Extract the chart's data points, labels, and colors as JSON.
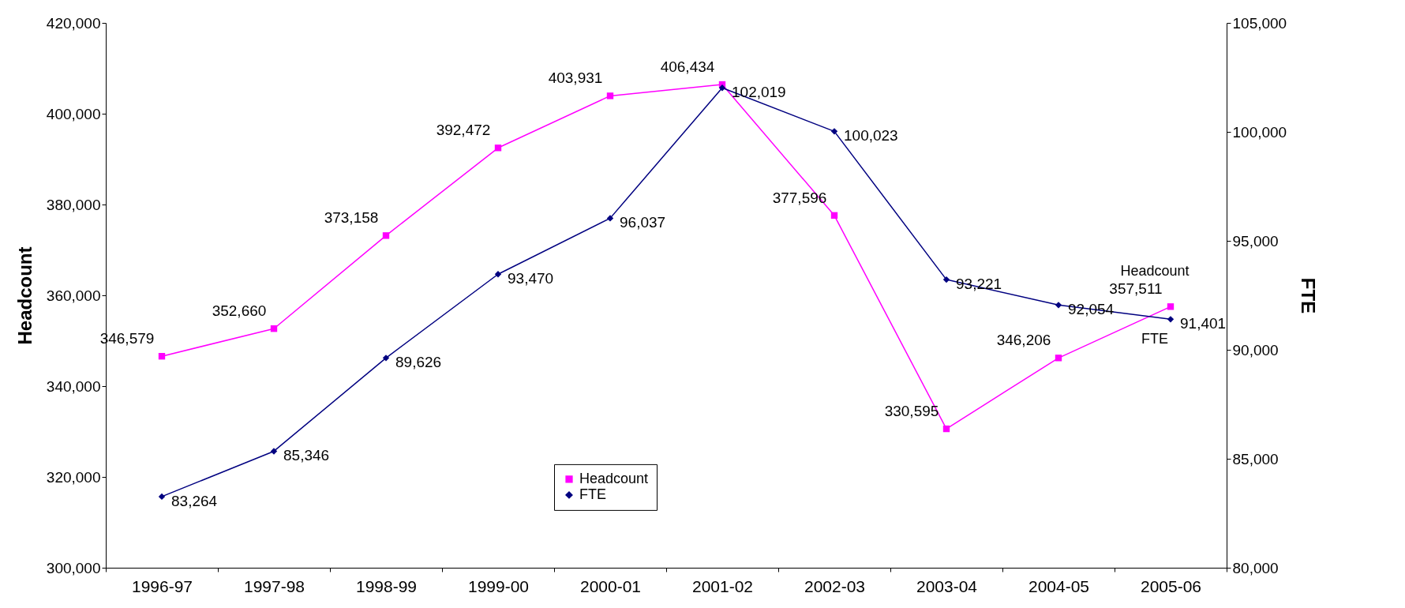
{
  "chart_data": {
    "type": "line",
    "ylabel": "Headcount",
    "y2label": "FTE",
    "categories": [
      "1996-97",
      "1997-98",
      "1998-99",
      "1999-00",
      "2000-01",
      "2001-02",
      "2002-03",
      "2003-04",
      "2004-05",
      "2005-06"
    ],
    "series": [
      {
        "name": "Headcount",
        "color": "#ff00ff",
        "marker": "square",
        "values": [
          346579,
          352660,
          373158,
          392472,
          403931,
          406434,
          377596,
          330595,
          346206,
          357511
        ],
        "value_labels": [
          "346,579",
          "352,660",
          "373,158",
          "392,472",
          "403,931",
          "406,434",
          "377,596",
          "330,595",
          "346,206",
          "357,511"
        ]
      },
      {
        "name": "FTE",
        "color": "#000080",
        "marker": "diamond",
        "axis": "y2",
        "values": [
          83264,
          85346,
          89626,
          93470,
          96037,
          102019,
          100023,
          93221,
          92054,
          91401
        ],
        "value_labels": [
          "83,264",
          "85,346",
          "89,626",
          "93,470",
          "96,037",
          "102,019",
          "100,023",
          "93,221",
          "92,054",
          "91,401"
        ]
      }
    ],
    "ylim": [
      300000,
      420000
    ],
    "yticks": [
      {
        "value": 300000,
        "label": "300,000"
      },
      {
        "value": 320000,
        "label": "320,000"
      },
      {
        "value": 340000,
        "label": "340,000"
      },
      {
        "value": 360000,
        "label": "360,000"
      },
      {
        "value": 380000,
        "label": "380,000"
      },
      {
        "value": 400000,
        "label": "400,000"
      },
      {
        "value": 420000,
        "label": "420,000"
      }
    ],
    "y2lim": [
      80000,
      105000
    ],
    "y2ticks": [
      {
        "value": 80000,
        "label": "80,000"
      },
      {
        "value": 85000,
        "label": "85,000"
      },
      {
        "value": 90000,
        "label": "90,000"
      },
      {
        "value": 95000,
        "label": "95,000"
      },
      {
        "value": 100000,
        "label": "100,000"
      },
      {
        "value": 105000,
        "label": "105,000"
      }
    ],
    "legend": "bottom",
    "annotations": [
      "Headcount",
      "FTE"
    ]
  }
}
